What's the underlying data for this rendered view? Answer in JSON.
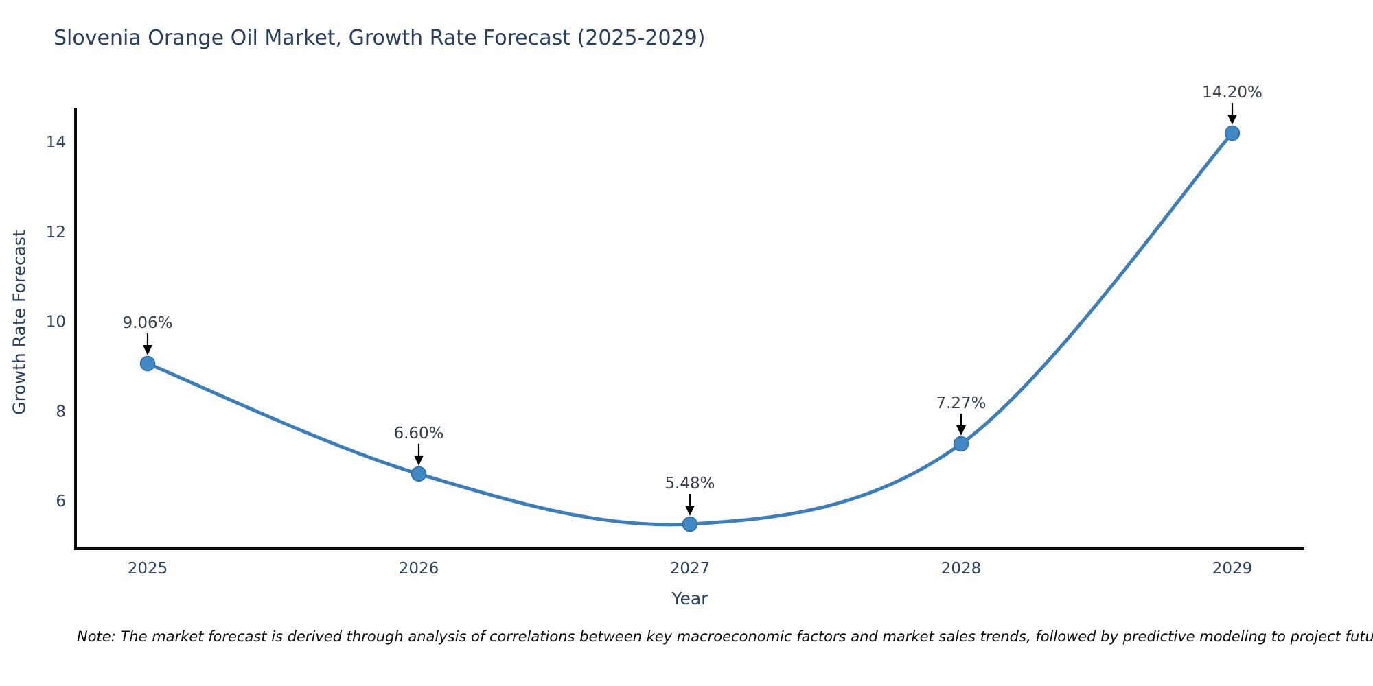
{
  "title": "Slovenia Orange Oil Market, Growth Rate Forecast (2025-2029)",
  "note": "Note: The market forecast is derived through analysis of correlations between key macroeconomic factors and market sales trends, followed by predictive modeling to project future sales",
  "chart_data": {
    "type": "line",
    "title": "Slovenia Orange Oil Market, Growth Rate Forecast (2025-2029)",
    "xlabel": "Year",
    "ylabel": "Growth Rate Forecast",
    "categories": [
      "2025",
      "2026",
      "2027",
      "2028",
      "2029"
    ],
    "values": [
      9.06,
      6.6,
      5.48,
      7.27,
      14.2
    ],
    "data_labels": [
      "9.06%",
      "6.60%",
      "5.48%",
      "7.27%",
      "14.20%"
    ],
    "y_ticks": [
      6,
      8,
      10,
      12,
      14
    ],
    "ylim": [
      4.93,
      14.75
    ],
    "line_shape": "spline",
    "grid": false,
    "legend": "none",
    "annotation_style": "label-above-with-down-arrow",
    "colors": {
      "line": "#3d7db8",
      "marker_fill": "#4288c4",
      "marker_edge": "#2d6ba8",
      "axis": "#0d0d0d",
      "tick_text": "#2a3f5f",
      "title_text": "#2a3f5f",
      "annotation_text": "#333d47",
      "arrow": "#000000",
      "background": "#ffffff"
    }
  }
}
